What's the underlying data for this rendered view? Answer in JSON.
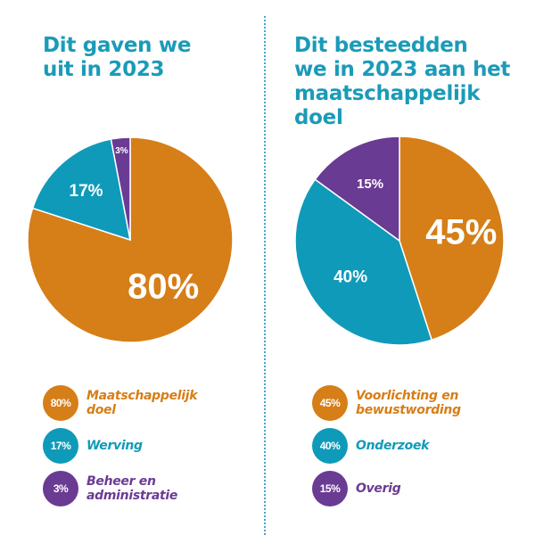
{
  "chart_data": [
    {
      "type": "pie",
      "title": "Dit gaven we uit in 2023",
      "title_lines": [
        "Dit gaven we",
        "uit in 2023"
      ],
      "start": "top",
      "direction": "clockwise",
      "slices": [
        {
          "label": "Maatschappelijk doel",
          "value": 80,
          "display": "80%",
          "color": "#d67e17"
        },
        {
          "label": "Werving",
          "value": 17,
          "display": "17%",
          "color": "#0f9ab9"
        },
        {
          "label": "Beheer en administratie",
          "value": 3,
          "display": "3%",
          "color": "#6a3b93"
        }
      ]
    },
    {
      "type": "pie",
      "title": "Dit besteedden we in 2023 aan het maatschappelijk doel",
      "title_lines": [
        "Dit besteedden",
        "we in 2023 aan het",
        "maatschappelijk doel"
      ],
      "start": "top",
      "direction": "clockwise",
      "slices": [
        {
          "label": "Voorlichting en bewustwording",
          "label_lines": [
            "Voorlichting en",
            "bewustwording"
          ],
          "value": 45,
          "display": "45%",
          "color": "#d67e17"
        },
        {
          "label": "Onderzoek",
          "value": 40,
          "display": "40%",
          "color": "#0f9ab9"
        },
        {
          "label": "Overig",
          "value": 15,
          "display": "15%",
          "color": "#6a3b93"
        }
      ]
    }
  ]
}
